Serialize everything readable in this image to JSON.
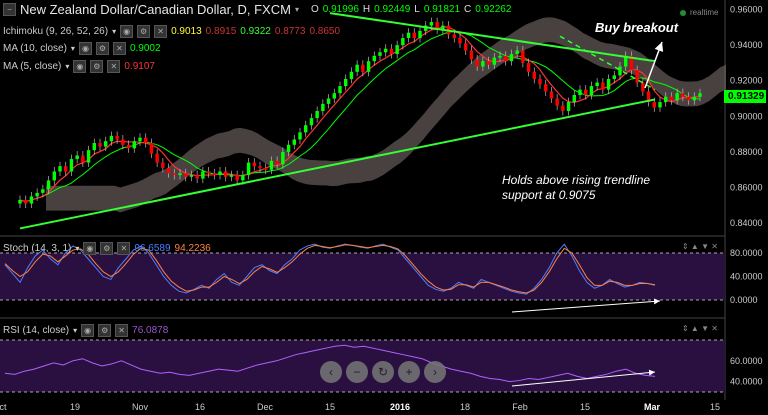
{
  "header": {
    "title": "New Zealand Dollar/Canadian Dollar, D, FXCM",
    "ohlc": [
      {
        "label": "O",
        "value": "0.91996"
      },
      {
        "label": "H",
        "value": "0.92449"
      },
      {
        "label": "L",
        "value": "0.91821"
      },
      {
        "label": "C",
        "value": "0.92262"
      }
    ],
    "realtime": "realtime"
  },
  "indicators": {
    "ichimoku": {
      "label": "Ichimoku (9, 26, 52, 26)",
      "values": [
        "0.9013",
        "0.8915",
        "0.9322",
        "0.8773",
        "0.8650"
      ]
    },
    "ma10": {
      "label": "MA (10, close)",
      "value": "0.9002"
    },
    "ma5": {
      "label": "MA (5, close)",
      "value": "0.9107"
    },
    "stoch": {
      "label": "Stoch (14, 3, 1)",
      "values": [
        "96.6589",
        "94.2236"
      ]
    },
    "rsi": {
      "label": "RSI (14, close)",
      "value": "76.0878"
    }
  },
  "price_tag": "0.91329",
  "annotations": {
    "buy_breakout": "Buy breakout",
    "holds_line1": "Holds above rising trendline",
    "holds_line2": "support at 0.9075"
  },
  "nav_buttons": [
    "minus",
    "zoom-out",
    "reset",
    "scroll-left",
    "scroll-right"
  ],
  "colors": {
    "up_candle": "#00ff00",
    "down_candle": "#ff0000",
    "ma10": "#00ff00",
    "ma5": "#ff3333",
    "cloud": "#7a6a6a",
    "trendline": "#33ff33",
    "stoch_k": "#4a7dff",
    "stoch_d": "#ff8040",
    "rsi_line": "#b060ff",
    "osc_bg": "#2a1040"
  },
  "chart_data": [
    {
      "type": "candlestick",
      "title": "New Zealand Dollar/Canadian Dollar, D, FXCM",
      "x_ticks": [
        "ct",
        "19",
        "Nov",
        "16",
        "Dec",
        "15",
        "2016",
        "18",
        "Feb",
        "15",
        "Mar",
        "15"
      ],
      "y_ticks": [
        0.84,
        0.86,
        0.88,
        0.9,
        0.92,
        0.94,
        0.96
      ],
      "ylim": [
        0.835,
        0.962
      ],
      "close": [
        0.853,
        0.851,
        0.855,
        0.857,
        0.859,
        0.864,
        0.869,
        0.872,
        0.869,
        0.876,
        0.878,
        0.874,
        0.881,
        0.885,
        0.883,
        0.886,
        0.889,
        0.887,
        0.884,
        0.882,
        0.886,
        0.888,
        0.885,
        0.879,
        0.874,
        0.871,
        0.868,
        0.867,
        0.868,
        0.866,
        0.867,
        0.865,
        0.869,
        0.868,
        0.867,
        0.869,
        0.866,
        0.867,
        0.864,
        0.867,
        0.874,
        0.872,
        0.871,
        0.87,
        0.875,
        0.873,
        0.88,
        0.884,
        0.887,
        0.891,
        0.895,
        0.899,
        0.903,
        0.907,
        0.91,
        0.913,
        0.917,
        0.921,
        0.925,
        0.929,
        0.925,
        0.931,
        0.934,
        0.936,
        0.938,
        0.935,
        0.94,
        0.944,
        0.947,
        0.944,
        0.948,
        0.951,
        0.953,
        0.949,
        0.951,
        0.946,
        0.944,
        0.941,
        0.937,
        0.932,
        0.928,
        0.931,
        0.929,
        0.933,
        0.934,
        0.931,
        0.935,
        0.937,
        0.93,
        0.925,
        0.921,
        0.918,
        0.914,
        0.91,
        0.906,
        0.903,
        0.908,
        0.912,
        0.915,
        0.912,
        0.917,
        0.919,
        0.915,
        0.921,
        0.923,
        0.928,
        0.934,
        0.926,
        0.919,
        0.914,
        0.908,
        0.905,
        0.908,
        0.911,
        0.909,
        0.913,
        0.911,
        0.909,
        0.911,
        0.913
      ],
      "trendline_support": {
        "from": [
          "ct",
          0.837
        ],
        "to": [
          "Mar",
          0.909
        ]
      },
      "trendline_resistance": {
        "from": [
          "15",
          0.958
        ],
        "to": [
          "Mar",
          0.931
        ]
      },
      "annotations": [
        "Buy breakout",
        "Holds above rising trendline support at 0.9075"
      ]
    },
    {
      "type": "line",
      "title": "Stoch (14, 3, 1)",
      "y_ticks": [
        0.0,
        40.0,
        80.0
      ],
      "ylim": [
        0,
        100
      ],
      "series": [
        {
          "name": "%K",
          "values": [
            60,
            45,
            30,
            55,
            75,
            85,
            70,
            60,
            80,
            92,
            85,
            70,
            55,
            40,
            35,
            55,
            70,
            85,
            92,
            80,
            60,
            40,
            25,
            15,
            12,
            18,
            25,
            20,
            35,
            45,
            30,
            25,
            40,
            55,
            60,
            50,
            45,
            60,
            70,
            85,
            92,
            95,
            90,
            88,
            92,
            95,
            93,
            90,
            88,
            92,
            95,
            90,
            85,
            70,
            55,
            40,
            25,
            18,
            15,
            20,
            30,
            25,
            20,
            35,
            30,
            25,
            20,
            15,
            12,
            10,
            20,
            35,
            55,
            80,
            95,
            75,
            50,
            30,
            20,
            25,
            35,
            28,
            22,
            25,
            30,
            28,
            25
          ]
        },
        {
          "name": "%D",
          "values": [
            62,
            50,
            40,
            48,
            65,
            78,
            75,
            65,
            75,
            85,
            87,
            78,
            62,
            48,
            40,
            48,
            62,
            78,
            88,
            85,
            68,
            48,
            32,
            22,
            15,
            17,
            22,
            22,
            30,
            40,
            35,
            28,
            35,
            48,
            57,
            53,
            47,
            55,
            65,
            78,
            88,
            93,
            91,
            89,
            91,
            94,
            93,
            91,
            89,
            91,
            93,
            91,
            87,
            75,
            60,
            45,
            32,
            22,
            17,
            18,
            26,
            26,
            22,
            30,
            30,
            26,
            22,
            17,
            14,
            12,
            17,
            30,
            48,
            70,
            88,
            80,
            60,
            38,
            25,
            25,
            32,
            30,
            25,
            25,
            28,
            28,
            26
          ]
        }
      ]
    },
    {
      "type": "line",
      "title": "RSI (14, close)",
      "y_ticks": [
        40.0,
        60.0
      ],
      "ylim": [
        30,
        80
      ],
      "series": [
        {
          "name": "RSI",
          "values": [
            48,
            47,
            50,
            52,
            55,
            58,
            56,
            60,
            62,
            58,
            55,
            57,
            60,
            56,
            52,
            50,
            48,
            49,
            47,
            46,
            48,
            50,
            52,
            51,
            50,
            53,
            56,
            58,
            60,
            63,
            66,
            68,
            70,
            72,
            74,
            75,
            73,
            74,
            72,
            70,
            68,
            66,
            64,
            62,
            58,
            55,
            52,
            50,
            48,
            45,
            43,
            42,
            40,
            41,
            43,
            42,
            44,
            46,
            48,
            45,
            43,
            45,
            47,
            50,
            52,
            48,
            46,
            45
          ]
        }
      ]
    }
  ]
}
